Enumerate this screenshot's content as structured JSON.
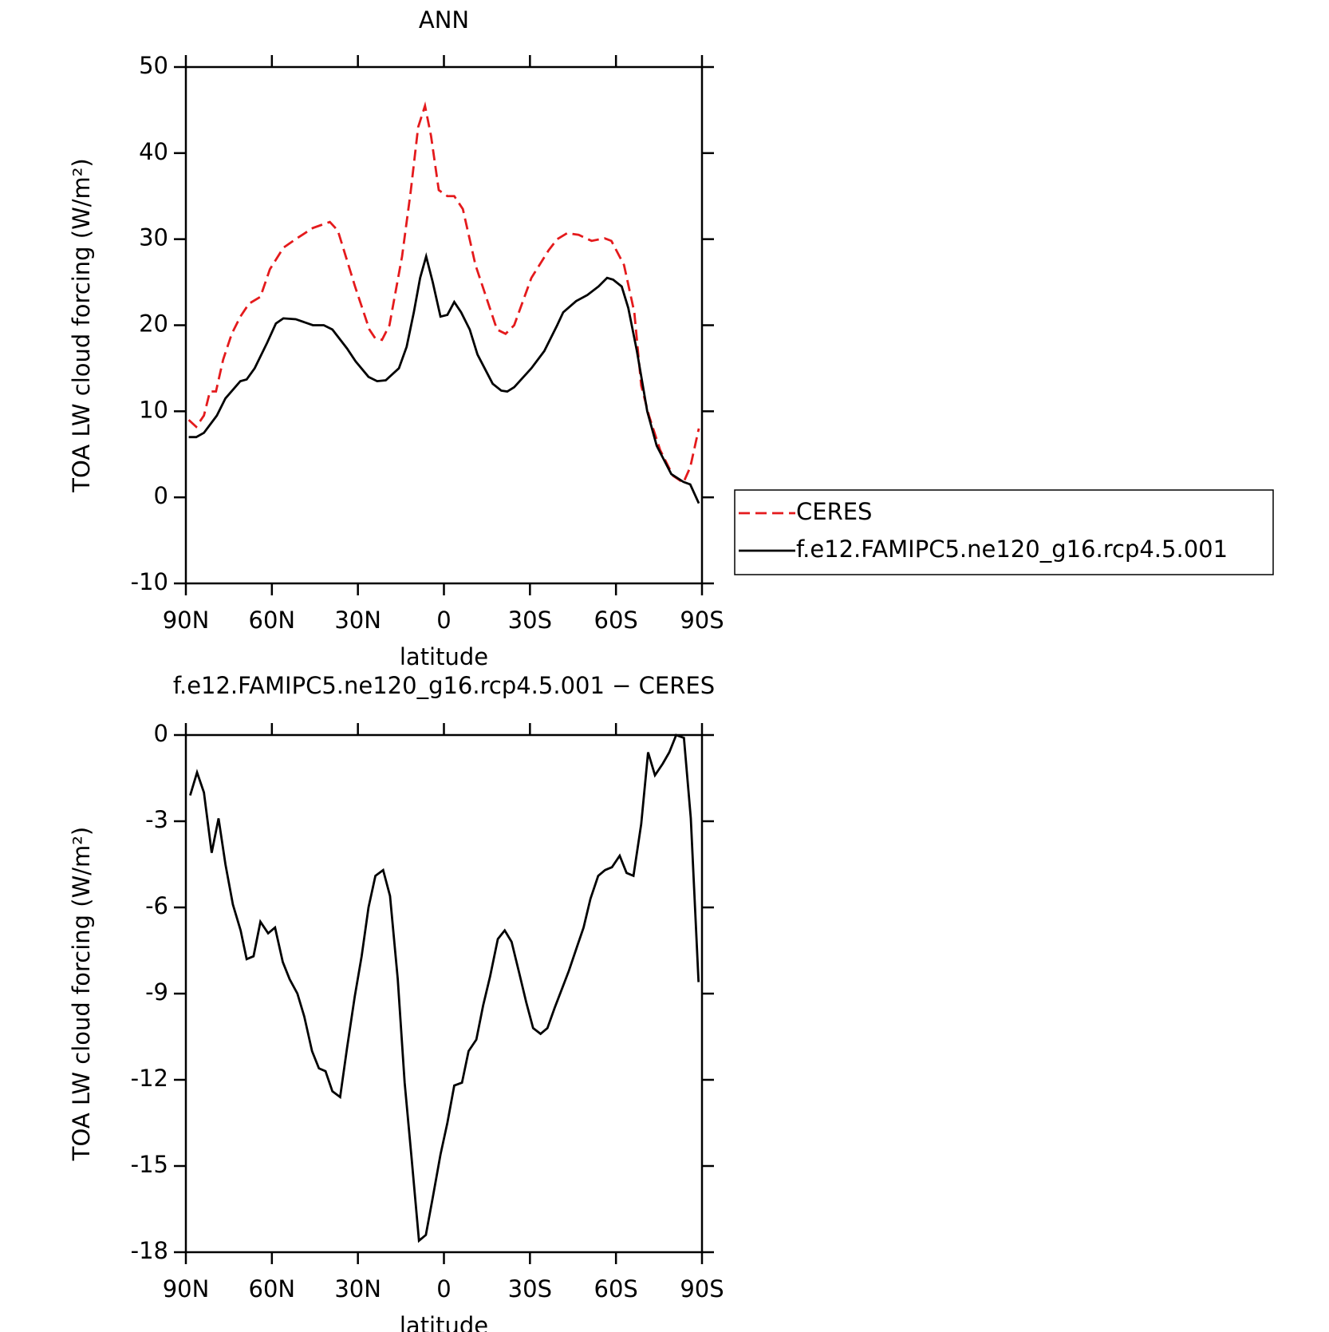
{
  "chart_data": [
    {
      "type": "line",
      "title": "ANN",
      "x_label": "latitude",
      "y_label": "TOA LW cloud forcing (W/m²)",
      "xlim": [
        90,
        -90
      ],
      "xticks": [
        {
          "value": 90,
          "label": "90N"
        },
        {
          "value": 60,
          "label": "60N"
        },
        {
          "value": 30,
          "label": "30N"
        },
        0,
        {
          "value": -30,
          "label": "30S"
        },
        {
          "value": -60,
          "label": "60S"
        },
        {
          "value": -90,
          "label": "90S"
        }
      ],
      "ylim": [
        -10,
        50
      ],
      "yticks": [
        -10,
        0,
        10,
        20,
        30,
        40,
        50
      ],
      "legend": "right",
      "series": [
        {
          "name": "CERES",
          "color": "#e41a1c",
          "dashed": true,
          "x": [
            89,
            86.4,
            83.7,
            81.6,
            79.5,
            77,
            74,
            71,
            68,
            64,
            60.7,
            56,
            51.7,
            45.7,
            39.8,
            37,
            31,
            26,
            24,
            21.6,
            19,
            14.6,
            11.6,
            9,
            6.6,
            4.5,
            1.8,
            -1.2,
            -3.6,
            -6.6,
            -11,
            -15.5,
            -18.5,
            -21.5,
            -24.5,
            -30.5,
            -36.5,
            -39.5,
            -43,
            -47,
            -51.5,
            -56,
            -58.4,
            -62.8,
            -66.4,
            -68.8,
            -71.5,
            -75.4,
            -79.9,
            -83.5,
            -85.9,
            -88.9
          ],
          "values": [
            9,
            8.2,
            9.5,
            12.3,
            12.3,
            16,
            19,
            21,
            22.5,
            23.3,
            26.5,
            29,
            30,
            31.3,
            32,
            31,
            24.5,
            19.5,
            18.5,
            18.3,
            20,
            28,
            35.5,
            43,
            45.5,
            42,
            35.7,
            35,
            35,
            33.5,
            27,
            22.5,
            19.5,
            19,
            20,
            25.5,
            28.7,
            30,
            30.7,
            30.5,
            29.8,
            30.1,
            29.8,
            27,
            21.5,
            13,
            9.5,
            5.5,
            2.5,
            1.7,
            3.5,
            8
          ]
        },
        {
          "name": "f.e12.FAMIPC5.ne120_g16.rcp4.5.001",
          "color": "#000000",
          "dashed": false,
          "x": [
            89,
            86.4,
            83.7,
            79.2,
            76.2,
            71,
            68.8,
            66,
            61.6,
            58.6,
            56,
            51.7,
            45.7,
            41.9,
            38.9,
            33.8,
            30.8,
            26.3,
            23.3,
            20.3,
            15.7,
            13,
            10.5,
            8.3,
            6.2,
            3.9,
            1.2,
            -1.2,
            -3.6,
            -6,
            -9,
            -11.7,
            -17,
            -20,
            -22.1,
            -24.5,
            -30.5,
            -35,
            -39.5,
            -41.6,
            -46.1,
            -50,
            -53.9,
            -56.9,
            -59,
            -62,
            -64.3,
            -67.3,
            -70.9,
            -74.2,
            -79.3,
            -83.5,
            -85.9,
            -88.9
          ],
          "values": [
            7,
            7,
            7.5,
            9.5,
            11.5,
            13.5,
            13.7,
            15,
            18,
            20.2,
            20.8,
            20.7,
            20,
            20,
            19.5,
            17.3,
            15.8,
            14,
            13.5,
            13.6,
            15,
            17.5,
            21.5,
            25.5,
            28,
            25,
            21,
            21.2,
            22.7,
            21.5,
            19.5,
            16.6,
            13.2,
            12.4,
            12.3,
            12.8,
            15,
            17,
            20,
            21.5,
            22.8,
            23.5,
            24.5,
            25.5,
            25.3,
            24.5,
            22,
            17,
            10,
            6,
            2.7,
            1.8,
            1.5,
            -0.7
          ]
        }
      ]
    },
    {
      "type": "line",
      "title": "f.e12.FAMIPC5.ne120_g16.rcp4.5.001 − CERES",
      "x_label": "latitude",
      "y_label": "TOA LW cloud forcing (W/m²)",
      "xlim": [
        90,
        -90
      ],
      "xticks": [
        {
          "value": 90,
          "label": "90N"
        },
        {
          "value": 60,
          "label": "60N"
        },
        {
          "value": 30,
          "label": "30N"
        },
        0,
        {
          "value": -30,
          "label": "30S"
        },
        {
          "value": -60,
          "label": "60S"
        },
        {
          "value": -90,
          "label": "90S"
        }
      ],
      "ylim": [
        -18,
        0
      ],
      "yticks": [
        -18,
        -15,
        -12,
        -9,
        -6,
        -3,
        0
      ],
      "series": [
        {
          "color": "#000000",
          "dashed": false,
          "x": [
            88.5,
            86.1,
            83.7,
            81,
            78.6,
            76.2,
            73.6,
            70.9,
            68.8,
            66.4,
            64,
            61.3,
            58.9,
            56.2,
            53.8,
            51.1,
            48.7,
            46,
            43.6,
            41.3,
            38.9,
            36.2,
            33.8,
            31.1,
            28.7,
            26.3,
            23.9,
            21.2,
            18.8,
            16.1,
            13.7,
            11.3,
            8.7,
            6.3,
            3.9,
            1.2,
            -1.2,
            -3.6,
            -6.3,
            -8.6,
            -11.3,
            -13.7,
            -16.1,
            -18.8,
            -21.2,
            -23.6,
            -26.3,
            -28.7,
            -31.1,
            -33.7,
            -36.1,
            -38.6,
            -41.3,
            -43.6,
            -46.3,
            -48.7,
            -51.1,
            -53.8,
            -56.2,
            -58.6,
            -61.3,
            -63.7,
            -66.1,
            -68.8,
            -71.2,
            -73.6,
            -76.3,
            -78.6,
            -81,
            -83.7,
            -86.1,
            -88.8
          ],
          "values": [
            -2.1,
            -1.3,
            -2,
            -4.1,
            -2.9,
            -4.5,
            -5.9,
            -6.8,
            -7.8,
            -7.7,
            -6.5,
            -6.9,
            -6.7,
            -7.9,
            -8.5,
            -9,
            -9.8,
            -11,
            -11.6,
            -11.7,
            -12.4,
            -12.6,
            -10.9,
            -9.1,
            -7.7,
            -6,
            -4.9,
            -4.7,
            -5.6,
            -8.5,
            -12.1,
            -14.7,
            -17.6,
            -17.4,
            -16.1,
            -14.6,
            -13.5,
            -12.2,
            -12.1,
            -11,
            -10.6,
            -9.4,
            -8.4,
            -7.1,
            -6.8,
            -7.2,
            -8.3,
            -9.3,
            -10.2,
            -10.4,
            -10.2,
            -9.5,
            -8.8,
            -8.2,
            -7.4,
            -6.7,
            -5.7,
            -4.9,
            -4.7,
            -4.6,
            -4.2,
            -4.8,
            -4.9,
            -3.1,
            -0.6,
            -1.4,
            -1,
            -0.6,
            0,
            -0.1,
            -2.9,
            -8.6
          ]
        }
      ]
    }
  ]
}
